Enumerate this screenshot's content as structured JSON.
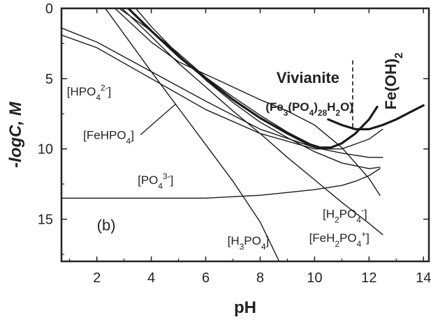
{
  "chart_data": {
    "type": "line",
    "panel_label": "(b)",
    "xlabel": "pH",
    "ylabel": "-logC, M",
    "xlim": [
      0.7,
      14.2
    ],
    "ylim": [
      0,
      18
    ],
    "y_inverted": true,
    "x_ticks": [
      2,
      4,
      6,
      8,
      10,
      12,
      14
    ],
    "y_ticks": [
      0,
      5,
      10,
      15
    ],
    "grid": false,
    "legend": "none",
    "series": [
      {
        "x": [
          2.5,
          3,
          4,
          5,
          6,
          7,
          8,
          9,
          10,
          11,
          12,
          12.4
        ],
        "y": [
          -0.3,
          0.6,
          2.4,
          3.8,
          4.7,
          5.6,
          6.5,
          7.3,
          8.3,
          9.9,
          12.1,
          13.3
        ]
      },
      {
        "x": [
          2.8,
          3.2,
          4,
          5,
          6,
          7,
          8,
          9,
          10,
          11,
          12,
          12.5
        ],
        "y": [
          -0.2,
          0.5,
          2.0,
          3.9,
          5.6,
          7.3,
          8.9,
          10.6,
          12.2,
          13.8,
          15.3,
          16.1
        ]
      },
      {
        "x": [
          3.3,
          4,
          5,
          6,
          7,
          8,
          9,
          10,
          11,
          12,
          12.4
        ],
        "y": [
          -0.3,
          1.3,
          3.3,
          5.1,
          6.7,
          8.1,
          9.2,
          10.2,
          11.0,
          11.4,
          11.3
        ]
      },
      {
        "x": [
          0.7,
          2,
          4,
          6,
          8,
          10,
          11,
          12,
          12.5
        ],
        "y": [
          1.4,
          2.4,
          4.5,
          6.6,
          8.6,
          9.9,
          10.3,
          10.6,
          10.6
        ]
      },
      {
        "x": [
          0.7,
          2,
          4,
          6,
          8,
          10,
          11,
          12,
          12.5
        ],
        "y": [
          1.9,
          2.8,
          5.0,
          7.2,
          8.9,
          10.0,
          10.0,
          9.3,
          8.6
        ]
      },
      {
        "x": [
          2.6,
          4,
          5,
          6,
          7,
          8,
          9,
          10
        ],
        "y": [
          -0.3,
          1.6,
          3.2,
          4.9,
          6.3,
          7.6,
          8.8,
          9.8
        ]
      },
      {
        "x": [
          0.7,
          2,
          4,
          6,
          7,
          8,
          9,
          10,
          11,
          11.5,
          12,
          12.4
        ],
        "y": [
          13.5,
          13.5,
          13.5,
          13.5,
          13.4,
          13.3,
          13.1,
          12.9,
          12.6,
          12.3,
          11.9,
          11.4
        ]
      },
      {
        "x": [
          2.2,
          4,
          6,
          7,
          8,
          8.7
        ],
        "y": [
          -0.3,
          4.5,
          9.7,
          12.3,
          15.2,
          18.0
        ]
      },
      {
        "x": [
          3.0,
          4,
          5,
          6,
          7,
          8,
          9,
          9.7,
          10.2,
          10.6,
          11.0,
          11.5,
          12.0,
          12.3
        ],
        "y": [
          -0.3,
          1.6,
          3.4,
          5.0,
          6.5,
          7.8,
          8.9,
          9.6,
          9.9,
          9.9,
          9.6,
          8.9,
          7.9,
          7.0
        ],
        "bold": true
      },
      {
        "x": [
          10.5,
          11.0,
          11.5,
          12.0,
          12.5,
          13.0,
          13.5,
          14.0
        ],
        "y": [
          7.9,
          8.3,
          8.6,
          8.6,
          8.3,
          7.9,
          7.4,
          6.9
        ],
        "bold": true
      }
    ],
    "vertical_marker": {
      "x": 11.4,
      "y_from": 3.7,
      "y_to": 8.5,
      "dashed": true
    },
    "annotations": [
      {
        "text": "[HPO4^{2-}]",
        "x": 0.9,
        "y": 6.2
      },
      {
        "text": "[FeHPO4]",
        "x": 1.5,
        "y": 9.3
      },
      {
        "text": "[PO4^{3-}]",
        "x": 3.5,
        "y": 12.5
      },
      {
        "text": "[H3PO4]",
        "x": 6.8,
        "y": 16.8
      },
      {
        "text": "[FeH2PO4^{+}]",
        "x": 9.8,
        "y": 16.6
      },
      {
        "text": "[H2PO4^{-}]",
        "x": 10.3,
        "y": 14.9
      },
      {
        "text": "Vivianite",
        "x": 8.6,
        "y": 5.3,
        "bold": true,
        "size": 22
      },
      {
        "text": "(Fe3(PO4)28H2O)",
        "x": 8.2,
        "y": 7.3,
        "bold": true,
        "size": 17
      },
      {
        "text": "Fe(OH)2",
        "x": 13.0,
        "y": 7.2,
        "bold": true,
        "size": 22,
        "rotate": -90
      }
    ],
    "callout": {
      "from": [
        4.9,
        6.8
      ],
      "to": [
        3.6,
        9.0
      ]
    }
  }
}
